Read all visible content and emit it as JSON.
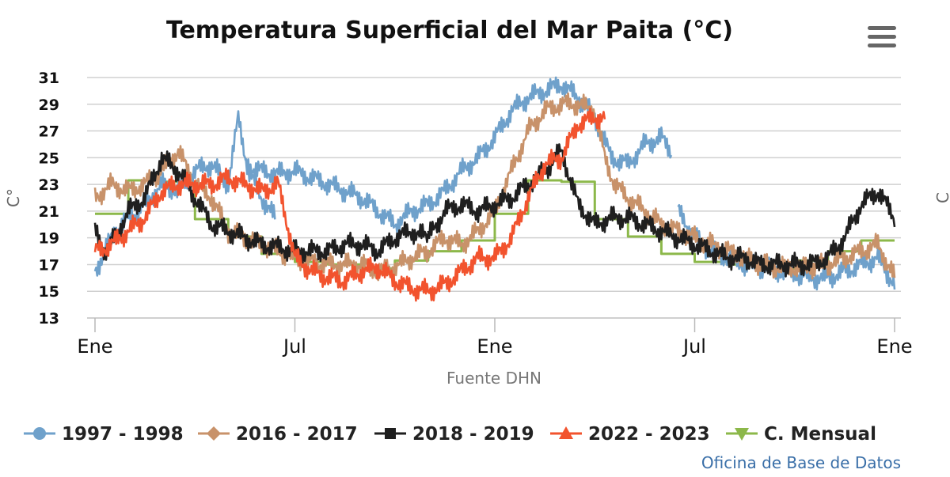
{
  "menu": {
    "icon": "hamburger-menu-icon"
  },
  "chart_data": {
    "type": "line",
    "title": "Temperatura Superficial del Mar Paita (°C)",
    "ylabel": "C°",
    "right_axis_label": "C",
    "xlabel": "Fuente DHN",
    "ylim": [
      13,
      31
    ],
    "yticks": [
      13,
      15,
      17,
      19,
      21,
      23,
      25,
      27,
      29,
      31
    ],
    "x_range": [
      0,
      24
    ],
    "x_unit": "months from January",
    "xticks": [
      {
        "value": 0,
        "label": "Ene"
      },
      {
        "value": 6,
        "label": "Jul"
      },
      {
        "value": 12,
        "label": "Ene"
      },
      {
        "value": 18,
        "label": "Jul"
      },
      {
        "value": 24,
        "label": "Ene"
      }
    ],
    "grid": true,
    "legend_position": "bottom",
    "credit": "Oficina de Base de Datos",
    "series": [
      {
        "name": "1997 - 1998",
        "color": "#6fa1cb",
        "marker": "circle",
        "step": false,
        "segments": [
          {
            "x": [
              0,
              0.3,
              0.6,
              1,
              1.5,
              2,
              2.5,
              3,
              3.5,
              4,
              4.3,
              4.6,
              5,
              5.4
            ],
            "y": [
              16.5,
              18,
              19.5,
              20.5,
              21.5,
              23,
              22.5,
              24,
              24.5,
              23,
              28,
              24,
              22,
              20.5
            ]
          },
          {
            "x": [
              4.5,
              5,
              5.5,
              6,
              6.5,
              7,
              7.5,
              8,
              8.5,
              9,
              9.5,
              10,
              10.5,
              11,
              11.5,
              12,
              12.5,
              13,
              13.5,
              14,
              14.5,
              15,
              15.5,
              16,
              16.5,
              17,
              17.3
            ],
            "y": [
              24.5,
              24,
              23.8,
              24,
              23.5,
              23,
              22.5,
              22,
              21,
              20,
              21,
              21.5,
              22.5,
              24,
              25,
              26.5,
              28.5,
              29.5,
              30,
              30.5,
              29.5,
              28,
              25,
              24.5,
              26,
              26.5,
              25.5
            ]
          },
          {
            "x": [
              17.5,
              18,
              18.5,
              19,
              19.5,
              20,
              20.5,
              21,
              21.5,
              22,
              22.5,
              23,
              23.5,
              24
            ],
            "y": [
              21,
              19,
              18,
              17.5,
              17,
              16.8,
              16.5,
              16.3,
              16,
              16,
              16.5,
              17,
              17.5,
              15.5
            ]
          }
        ]
      },
      {
        "name": "2016 - 2017",
        "color": "#c8926a",
        "marker": "diamond",
        "step": false,
        "segments": [
          {
            "x": [
              0,
              0.5,
              1,
              1.5,
              2,
              2.5,
              3,
              3.5,
              4,
              4.5,
              5,
              5.5,
              6,
              6.5,
              7,
              7.5,
              8,
              8.5,
              9,
              9.5,
              10,
              10.5,
              11,
              11.5,
              12,
              12.5,
              13,
              13.5,
              14,
              14.5,
              15,
              15.3,
              15.6,
              16,
              16.5,
              17,
              17.5,
              18,
              18.5,
              19,
              19.5,
              20,
              20.5,
              21,
              21.5,
              22,
              22.5,
              23,
              23.5,
              24
            ],
            "y": [
              22,
              23,
              22.5,
              23,
              24,
              25.5,
              23,
              22,
              19.5,
              19,
              18.5,
              18,
              17.5,
              17.2,
              17,
              17,
              17,
              16.5,
              16.8,
              17.5,
              18,
              19,
              18.5,
              19.5,
              21,
              24,
              27,
              28.5,
              29,
              29,
              28.5,
              25,
              23,
              22,
              21,
              20,
              19.5,
              19,
              18.5,
              18,
              17.5,
              17,
              16.8,
              16.8,
              16.8,
              17,
              17.5,
              18,
              18.5,
              16
            ]
          }
        ]
      },
      {
        "name": "2018 - 2019",
        "color": "#1f1f1f",
        "marker": "square",
        "step": false,
        "segments": [
          {
            "x": [
              0,
              0.3,
              0.6,
              1,
              1.5,
              2,
              2.5,
              3,
              3.5,
              4,
              4.5,
              5,
              5.5,
              6,
              6.5,
              7,
              7.5,
              8,
              8.5,
              9,
              9.5,
              10
            ],
            "y": [
              19.5,
              18,
              19,
              21,
              22,
              25,
              24,
              22,
              20,
              19.5,
              19,
              18.5,
              18.3,
              18,
              18,
              18,
              18.5,
              18.5,
              18,
              19,
              19.5,
              19
            ]
          },
          {
            "x": [
              10,
              10.5,
              11,
              11.5,
              12,
              12.5,
              13,
              13.5,
              14,
              14.5,
              15,
              15.5,
              16,
              16.5,
              17,
              17.5,
              18,
              18.5,
              19,
              19.5,
              20,
              20.5,
              21,
              21.5,
              22,
              22.5,
              23,
              23.5,
              24
            ],
            "y": [
              19,
              21,
              21.5,
              21,
              21.5,
              22,
              23,
              24,
              25.5,
              21.5,
              20,
              20.5,
              20.5,
              20,
              19.5,
              19,
              18.5,
              18,
              17.5,
              17.5,
              17,
              17,
              17,
              17,
              17.5,
              19,
              21.5,
              22.5,
              20.5
            ]
          }
        ]
      },
      {
        "name": "2022 - 2023",
        "color": "#f2532e",
        "marker": "triangle-up",
        "step": false,
        "segments": [
          {
            "x": [
              0,
              0.5,
              1,
              1.5,
              2,
              2.5,
              3,
              3.5,
              4,
              4.5,
              5,
              5.5,
              6,
              6.5,
              7,
              7.5,
              8,
              8.5,
              9,
              9.5,
              10,
              10.5,
              11,
              11.5,
              12,
              12.5,
              13,
              13.5,
              14,
              14.5,
              15,
              15.3
            ],
            "y": [
              18,
              18.5,
              19.5,
              20.5,
              22.5,
              23,
              23,
              23,
              23.5,
              23,
              22.5,
              23,
              17.5,
              16.5,
              16,
              15.8,
              16.5,
              16.8,
              15.8,
              15.2,
              15,
              15.5,
              16.5,
              17.5,
              17.5,
              19,
              22,
              24.5,
              25,
              27.5,
              28,
              28
            ]
          }
        ]
      },
      {
        "name": "C. Mensual",
        "color": "#8cb84a",
        "marker": "triangle-down",
        "step": true,
        "segments": [
          {
            "x": [
              0,
              1,
              2,
              3,
              4,
              5,
              6,
              7,
              8,
              9,
              10,
              11,
              12,
              13,
              14,
              15,
              16,
              17,
              18,
              19,
              20,
              21,
              22,
              23
            ],
            "y": [
              20.8,
              23.3,
              23.2,
              20.4,
              19.1,
              17.8,
              17.2,
              17.0,
              16.7,
              17.3,
              18.0,
              18.8,
              20.8,
              23.3,
              23.2,
              20.4,
              19.1,
              17.8,
              17.2,
              17.0,
              16.7,
              17.3,
              18.0,
              18.8
            ]
          }
        ]
      }
    ]
  }
}
